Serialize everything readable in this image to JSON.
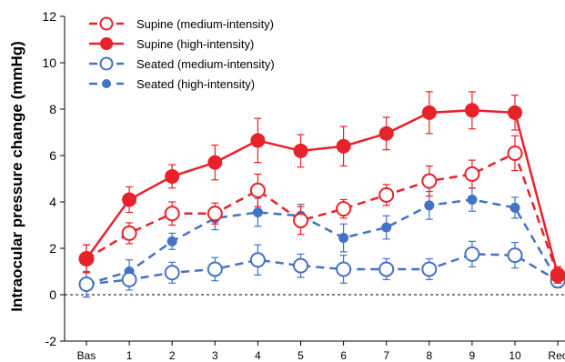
{
  "chart_data": {
    "type": "line",
    "title": "",
    "xlabel": "",
    "ylabel": "Intraocular pressure change (mmHg)",
    "categories": [
      "Bas",
      "1",
      "2",
      "3",
      "4",
      "5",
      "6",
      "7",
      "8",
      "9",
      "10",
      "Rec"
    ],
    "ylim": [
      -2,
      12
    ],
    "yticks": [
      -2,
      0,
      2,
      4,
      6,
      8,
      10,
      12
    ],
    "reference_line": 0,
    "grid": false,
    "legend_position": "top-left",
    "series": [
      {
        "name": "Supine (medium-intensity)",
        "color": "#e8222a",
        "line": "dashed",
        "marker": "open-circle",
        "marker_size": "large",
        "values": [
          1.55,
          2.65,
          3.5,
          3.5,
          4.5,
          3.2,
          3.7,
          4.3,
          4.9,
          5.2,
          6.1,
          0.85
        ],
        "errors": [
          0.6,
          0.45,
          0.5,
          0.45,
          0.7,
          0.6,
          0.4,
          0.45,
          0.65,
          0.6,
          0.75,
          0.35
        ]
      },
      {
        "name": "Supine (high-intensity)",
        "color": "#e8222a",
        "line": "solid",
        "marker": "filled-circle",
        "marker_size": "large",
        "values": [
          1.55,
          4.1,
          5.1,
          5.7,
          6.65,
          6.2,
          6.4,
          6.95,
          7.85,
          7.95,
          7.85,
          0.85
        ],
        "errors": [
          0.6,
          0.55,
          0.5,
          0.75,
          0.95,
          0.7,
          0.85,
          0.7,
          0.9,
          0.8,
          0.75,
          0.35
        ]
      },
      {
        "name": "Seated (medium-intensity)",
        "color": "#4472c4",
        "line": "dashed",
        "marker": "open-circle",
        "marker_size": "large",
        "values": [
          0.45,
          0.65,
          0.95,
          1.1,
          1.5,
          1.25,
          1.1,
          1.1,
          1.1,
          1.75,
          1.7,
          0.6
        ],
        "errors": [
          0.55,
          0.45,
          0.45,
          0.5,
          0.65,
          0.5,
          0.6,
          0.45,
          0.45,
          0.55,
          0.55,
          0.3
        ]
      },
      {
        "name": "Seated (high-intensity)",
        "color": "#4472c4",
        "line": "dashed",
        "marker": "filled-circle",
        "marker_size": "small",
        "values": [
          0.45,
          1.0,
          2.3,
          3.3,
          3.55,
          3.4,
          2.45,
          2.9,
          3.85,
          4.1,
          3.75,
          0.6
        ],
        "errors": [
          0.55,
          0.5,
          0.35,
          0.5,
          0.6,
          0.5,
          0.6,
          0.5,
          0.6,
          0.5,
          0.45,
          0.3
        ]
      }
    ]
  }
}
